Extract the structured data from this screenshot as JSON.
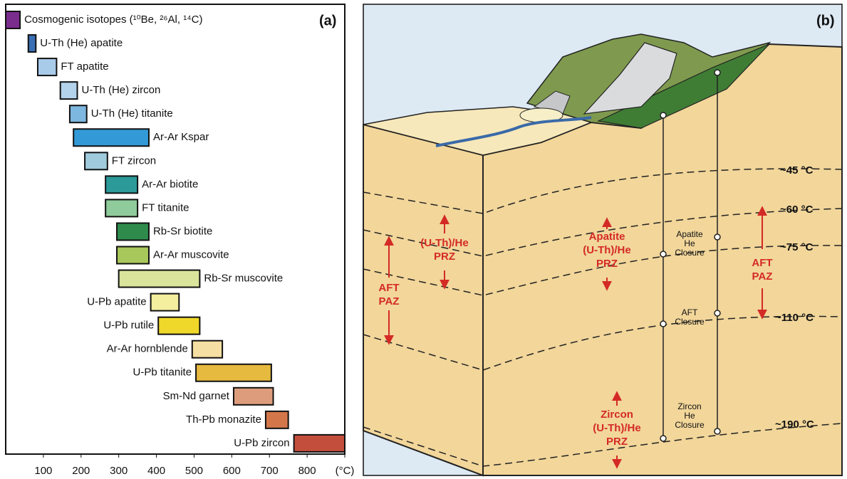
{
  "chart_data": {
    "type": "range-bar",
    "label": "(a)",
    "categories": [
      "Cosmogenic isotopes (¹⁰Be, ²⁶Al, ¹⁴C)",
      "U-Th (He) apatite",
      "FT apatite",
      "U-Th (He) zircon",
      "U-Th (He) titanite",
      "Ar-Ar Kspar",
      "FT zircon",
      "Ar-Ar biotite",
      "FT titanite",
      "Rb-Sr biotite",
      "Ar-Ar muscovite",
      "Rb-Sr muscovite",
      "U-Pb apatite",
      "U-Pb rutile",
      "Ar-Ar hornblende",
      "U-Pb titanite",
      "Sm-Nd garnet",
      "Th-Pb monazite",
      "U-Pb zircon"
    ],
    "low": [
      0,
      60,
      85,
      145,
      170,
      180,
      210,
      265,
      265,
      295,
      295,
      300,
      385,
      405,
      495,
      505,
      605,
      690,
      765
    ],
    "high": [
      38,
      80,
      135,
      190,
      215,
      380,
      270,
      350,
      350,
      380,
      380,
      515,
      460,
      515,
      575,
      705,
      710,
      750,
      900
    ],
    "colors": [
      "#7b2d8e",
      "#3a6fb5",
      "#a9cbea",
      "#b3d2ec",
      "#7db6de",
      "#339ad7",
      "#9fcbdc",
      "#2b9a99",
      "#8fcb9b",
      "#2e8b4c",
      "#a9c85b",
      "#dae49b",
      "#f4ee9f",
      "#f0d82a",
      "#f6dfa2",
      "#e6b93f",
      "#dd9d7c",
      "#d3774a",
      "#c44e3c"
    ],
    "xlim": [
      0,
      900
    ],
    "xticks": [
      100,
      200,
      300,
      400,
      500,
      600,
      700,
      800,
      {
        "value": 900,
        "label": "(°C)"
      }
    ]
  },
  "panel_b": {
    "label": "(b)",
    "isotherms": [
      "~45 °C",
      "~60 °C",
      "~75 °C",
      "~110 °C",
      "~190 °C"
    ],
    "zones": [
      {
        "lines": [
          "(U-Th)/He",
          "PRZ"
        ]
      },
      {
        "lines": [
          "AFT",
          "PAZ"
        ]
      },
      {
        "lines": [
          "Apatite",
          "(U-Th)/He",
          "PRZ"
        ]
      },
      {
        "lines": [
          "AFT",
          "PAZ"
        ]
      },
      {
        "lines": [
          "Zircon",
          "(U-Th)/He",
          "PRZ"
        ]
      }
    ],
    "closures": [
      {
        "lines": [
          "Apatite",
          "He",
          "Closure"
        ]
      },
      {
        "lines": [
          "AFT",
          "Closure"
        ]
      },
      {
        "lines": [
          "Zircon",
          "He",
          "Closure"
        ]
      }
    ]
  }
}
